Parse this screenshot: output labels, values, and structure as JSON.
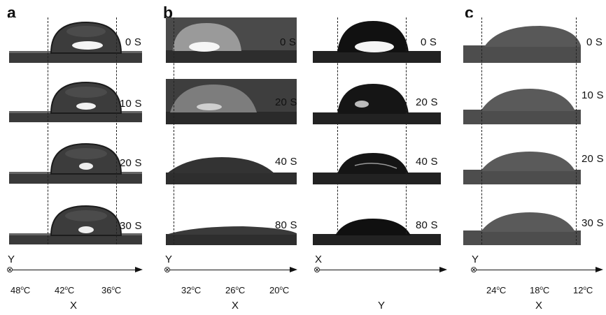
{
  "panels": {
    "a": {
      "letter": "a",
      "times": [
        "0 S",
        "10 S",
        "20 S",
        "30 S"
      ],
      "axis": {
        "perp_label": "Y",
        "temps": [
          "48oC",
          "42oC",
          "36oC"
        ],
        "axis_label": "X"
      }
    },
    "b": {
      "letter": "b",
      "times": [
        "0 S",
        "20 S",
        "40 S",
        "80 S"
      ],
      "axis": {
        "perp_label": "Y",
        "temps": [
          "32oC",
          "26oC",
          "20oC"
        ],
        "axis_label": "X"
      }
    },
    "b2": {
      "times": [
        "0 S",
        "20 S",
        "40 S",
        "80 S"
      ],
      "axis": {
        "perp_label": "X",
        "axis_label": "Y"
      }
    },
    "c": {
      "letter": "c",
      "times": [
        "0 S",
        "10 S",
        "20 S",
        "30 S"
      ],
      "axis": {
        "perp_label": "Y",
        "temps": [
          "24oC",
          "18oC",
          "12oC"
        ],
        "axis_label": "X"
      }
    }
  },
  "symbols": {
    "out_of_plane": "⊗"
  },
  "colors": {
    "background": "#ffffff",
    "substrate_dark": "#2b2b2b",
    "substrate_gray": "#555555",
    "text": "#111111"
  }
}
